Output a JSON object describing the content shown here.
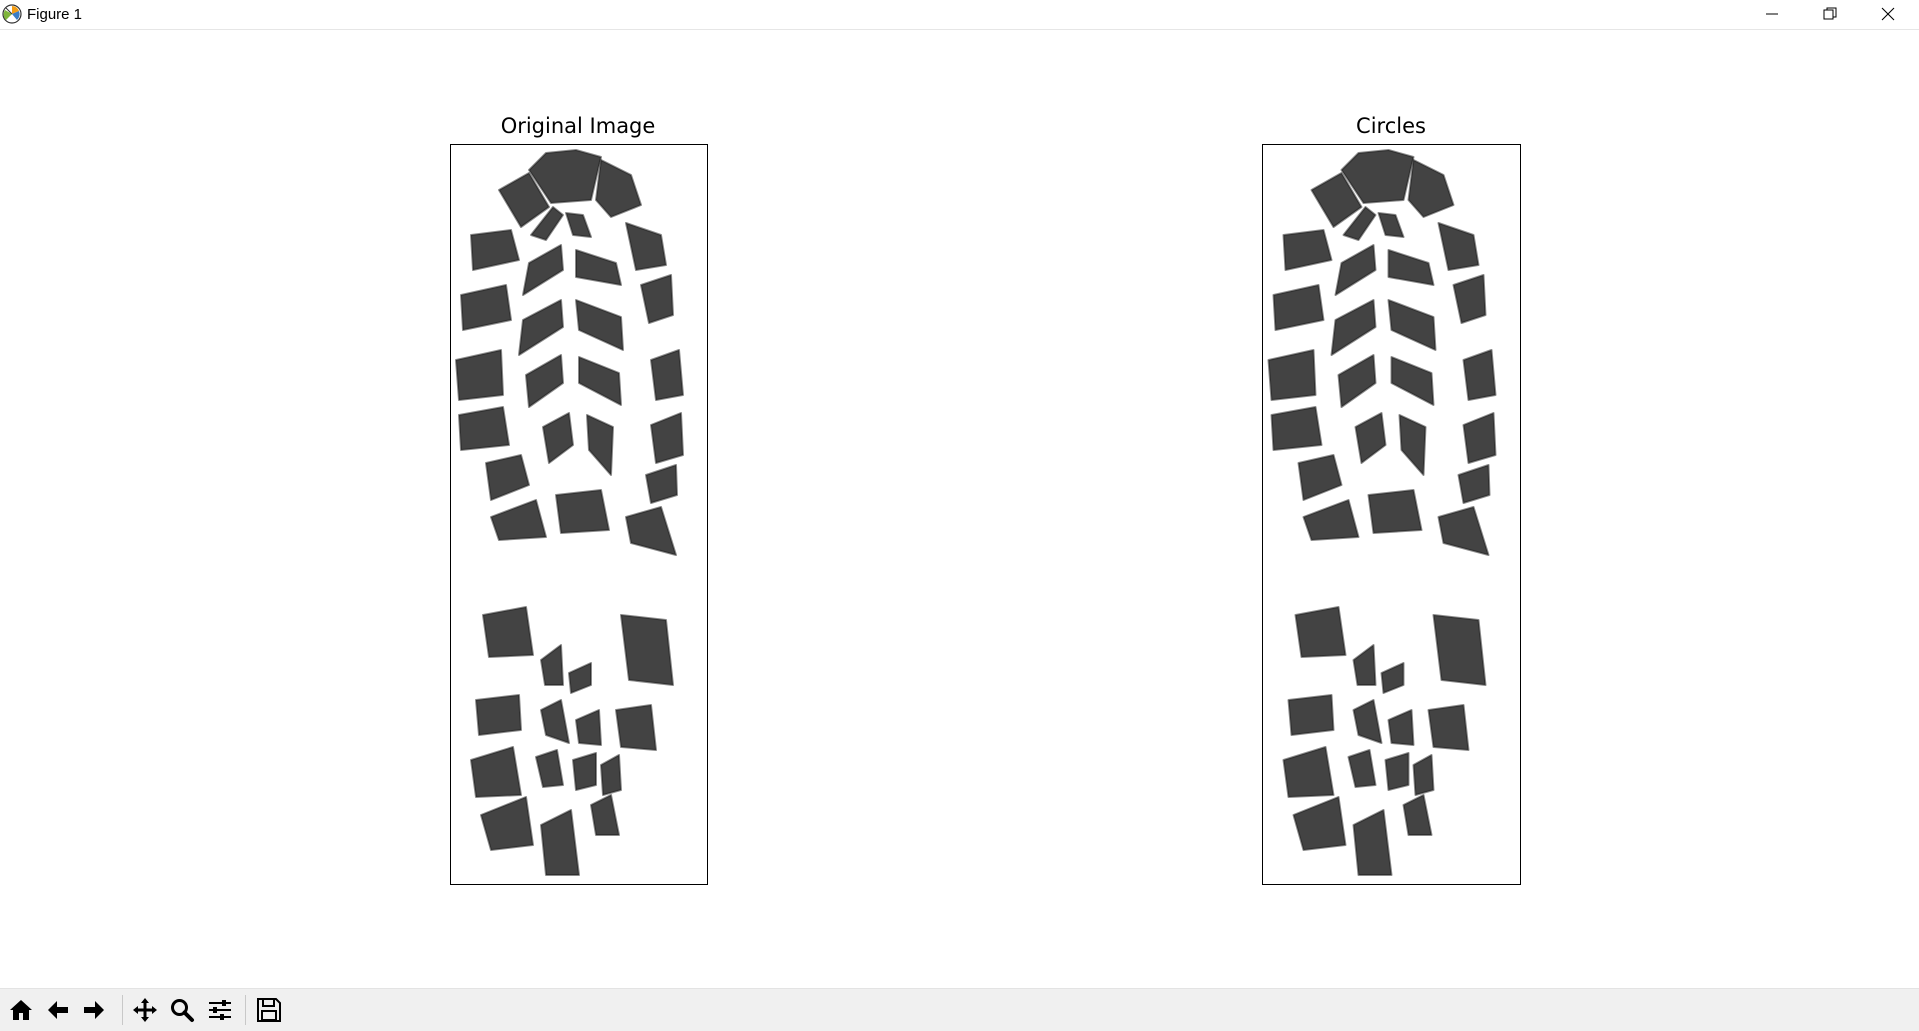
{
  "window": {
    "title": "Figure 1",
    "controls": [
      "minimize",
      "restore",
      "close"
    ]
  },
  "figure": {
    "axes": [
      {
        "title": "Original Image",
        "content": "shoe-sole-print-image"
      },
      {
        "title": "Circles",
        "content": "shoe-sole-print-image"
      }
    ]
  },
  "toolbar": {
    "buttons": [
      "home-icon",
      "back-icon",
      "forward-icon",
      "pan-icon",
      "zoom-icon",
      "configure-subplots-icon",
      "save-icon"
    ]
  },
  "colors": {
    "background": "#ffffff",
    "toolbar": "#f0f0f0",
    "ink": "#1a1a1a"
  }
}
